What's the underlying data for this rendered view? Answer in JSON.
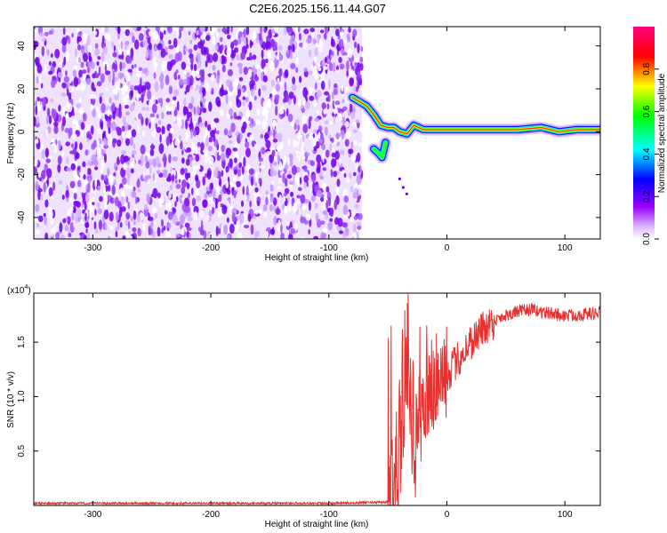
{
  "title": "C2E6.2025.156.11.44.G07",
  "colorbar": {
    "label": "Normalized spectral amplitude",
    "ticks": [
      "0.0",
      "0.2",
      "0.4",
      "0.6",
      "0.8"
    ]
  },
  "chart_data": [
    {
      "type": "heatmap",
      "xlabel": "Height of straight line (km)",
      "ylabel": "Frequency (Hz)",
      "xlim": [
        -350,
        130
      ],
      "ylim": [
        -50,
        49
      ],
      "x_ticks": [
        "-300",
        "-200",
        "-100",
        "0",
        "100"
      ],
      "y_ticks": [
        "-40",
        "-20",
        "0",
        "20",
        "40"
      ],
      "noise_region_x": [
        -350,
        -72
      ],
      "ridge": [
        {
          "x": -80,
          "y": 16
        },
        {
          "x": -74,
          "y": 14
        },
        {
          "x": -68,
          "y": 12
        },
        {
          "x": -62,
          "y": 8
        },
        {
          "x": -56,
          "y": 3
        },
        {
          "x": -50,
          "y": 2
        },
        {
          "x": -45,
          "y": 2
        },
        {
          "x": -40,
          "y": 0
        },
        {
          "x": -34,
          "y": -1
        },
        {
          "x": -28,
          "y": 3
        },
        {
          "x": -20,
          "y": 1
        },
        {
          "x": -10,
          "y": 1
        },
        {
          "x": 0,
          "y": 1
        },
        {
          "x": 20,
          "y": 1
        },
        {
          "x": 40,
          "y": 1
        },
        {
          "x": 60,
          "y": 1
        },
        {
          "x": 80,
          "y": 2
        },
        {
          "x": 95,
          "y": 0
        },
        {
          "x": 110,
          "y": 1
        },
        {
          "x": 130,
          "y": 1
        }
      ],
      "lower_branch": [
        {
          "x": -62,
          "y": -8
        },
        {
          "x": -58,
          "y": -10
        },
        {
          "x": -55,
          "y": -12
        },
        {
          "x": -52,
          "y": -5
        }
      ],
      "colorscale": [
        "#ffffff",
        "#9a00ff",
        "#0000ff",
        "#00ffff",
        "#00ff00",
        "#ffff00",
        "#ff0000",
        "#ff0080"
      ],
      "zlim": [
        0,
        1
      ]
    },
    {
      "type": "line",
      "xlabel": "Height of straight line (km)",
      "ylabel": "SNR (10 * v/v)",
      "y_multiplier": "(x10^4)",
      "xlim": [
        -350,
        130
      ],
      "ylim": [
        0,
        1.95
      ],
      "x_ticks": [
        "-300",
        "-200",
        "-100",
        "0",
        "100"
      ],
      "y_ticks": [
        "0.5",
        "1.0",
        "1.5"
      ],
      "color": "#e8312f",
      "series": [
        {
          "x": [
            -350,
            -300,
            -200,
            -100,
            -50,
            -45,
            -40,
            -35,
            -32,
            -30,
            -28,
            -25,
            -20,
            -15,
            -10,
            -5,
            0,
            10,
            20,
            30,
            40,
            50,
            60,
            70,
            80,
            90,
            100,
            110,
            120,
            130
          ],
          "y": [
            0.02,
            0.02,
            0.02,
            0.02,
            0.03,
            0.15,
            0.6,
            1.2,
            1.45,
            1.0,
            0.6,
            0.7,
            0.9,
            1.0,
            1.1,
            1.15,
            1.2,
            1.35,
            1.5,
            1.62,
            1.7,
            1.75,
            1.78,
            1.8,
            1.78,
            1.76,
            1.74,
            1.75,
            1.76,
            1.77
          ]
        }
      ]
    }
  ]
}
